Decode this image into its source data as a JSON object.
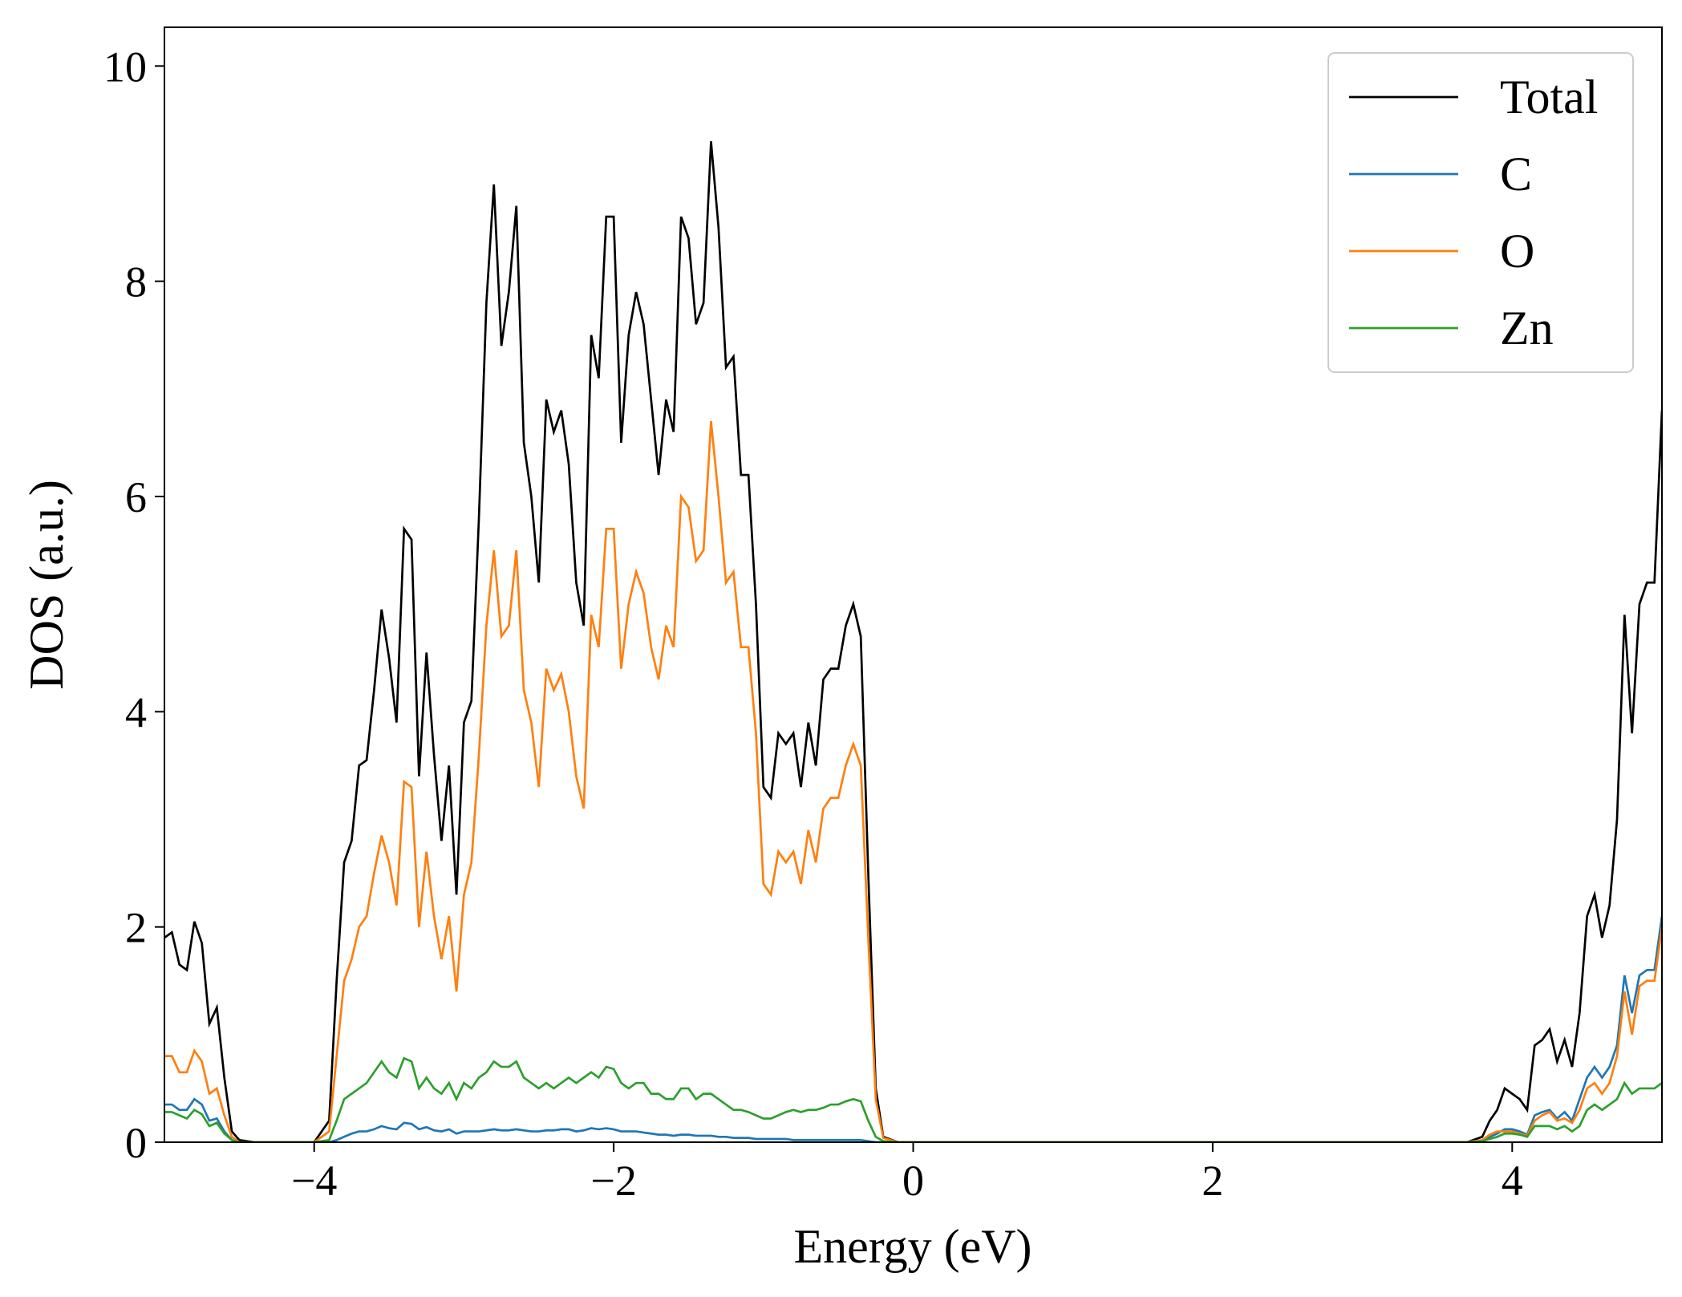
{
  "chart_data": {
    "type": "line",
    "xlabel": "Energy (eV)",
    "ylabel": "DOS (a.u.)",
    "xlim": [
      -5,
      5
    ],
    "ylim": [
      0,
      10.36
    ],
    "xticks": [
      {
        "value": -4,
        "label": "−4"
      },
      {
        "value": -2,
        "label": "−2"
      },
      0,
      2,
      4
    ],
    "yticks": [
      0,
      2,
      4,
      6,
      8,
      10
    ],
    "legend": "upper right",
    "grid": false,
    "x": [
      -5.0,
      -4.95,
      -4.9,
      -4.85,
      -4.8,
      -4.75,
      -4.7,
      -4.65,
      -4.6,
      -4.55,
      -4.5,
      -4.4,
      -4.0,
      -3.9,
      -3.85,
      -3.8,
      -3.75,
      -3.7,
      -3.65,
      -3.6,
      -3.55,
      -3.5,
      -3.45,
      -3.4,
      -3.35,
      -3.3,
      -3.25,
      -3.2,
      -3.15,
      -3.1,
      -3.05,
      -3.0,
      -2.95,
      -2.9,
      -2.85,
      -2.8,
      -2.75,
      -2.7,
      -2.65,
      -2.6,
      -2.55,
      -2.5,
      -2.45,
      -2.4,
      -2.35,
      -2.3,
      -2.25,
      -2.2,
      -2.15,
      -2.1,
      -2.05,
      -2.0,
      -1.95,
      -1.9,
      -1.85,
      -1.8,
      -1.75,
      -1.7,
      -1.65,
      -1.6,
      -1.55,
      -1.5,
      -1.45,
      -1.4,
      -1.35,
      -1.3,
      -1.25,
      -1.2,
      -1.15,
      -1.1,
      -1.05,
      -1.0,
      -0.95,
      -0.9,
      -0.85,
      -0.8,
      -0.75,
      -0.7,
      -0.65,
      -0.6,
      -0.55,
      -0.5,
      -0.45,
      -0.4,
      -0.35,
      -0.3,
      -0.25,
      -0.2,
      -0.1,
      0,
      1,
      2,
      3,
      3.7,
      3.8,
      3.85,
      3.9,
      3.95,
      4.0,
      4.05,
      4.1,
      4.15,
      4.2,
      4.25,
      4.3,
      4.35,
      4.4,
      4.45,
      4.5,
      4.55,
      4.6,
      4.65,
      4.7,
      4.75,
      4.8,
      4.85,
      4.9,
      4.95,
      5.0
    ],
    "series": [
      {
        "name": "Total",
        "color": "#000000",
        "values": [
          1.9,
          1.95,
          1.65,
          1.6,
          2.05,
          1.85,
          1.1,
          1.25,
          0.6,
          0.1,
          0.02,
          0,
          0,
          0.2,
          1.5,
          2.6,
          2.8,
          3.5,
          3.55,
          4.2,
          4.95,
          4.5,
          3.9,
          5.7,
          5.6,
          3.4,
          4.55,
          3.6,
          2.8,
          3.5,
          2.3,
          3.9,
          4.1,
          5.8,
          7.8,
          8.9,
          7.4,
          7.9,
          8.7,
          6.5,
          6.0,
          5.2,
          6.9,
          6.6,
          6.8,
          6.3,
          5.2,
          4.8,
          7.5,
          7.1,
          8.6,
          8.6,
          6.5,
          7.5,
          7.9,
          7.6,
          6.9,
          6.2,
          6.9,
          6.6,
          8.6,
          8.4,
          7.6,
          7.8,
          9.3,
          8.5,
          7.2,
          7.3,
          6.2,
          6.2,
          5.0,
          3.3,
          3.2,
          3.8,
          3.7,
          3.8,
          3.3,
          3.9,
          3.5,
          4.3,
          4.4,
          4.4,
          4.8,
          5.0,
          4.7,
          2.5,
          0.5,
          0.05,
          0,
          0,
          0,
          0,
          0,
          0,
          0.05,
          0.2,
          0.3,
          0.5,
          0.45,
          0.4,
          0.3,
          0.9,
          0.95,
          1.05,
          0.75,
          0.95,
          0.7,
          1.2,
          2.1,
          2.3,
          1.9,
          2.2,
          3.0,
          4.9,
          3.8,
          5.0,
          5.2,
          5.2,
          6.8
        ]
      },
      {
        "name": "C",
        "color": "#1f77b4",
        "values": [
          0.35,
          0.35,
          0.3,
          0.3,
          0.4,
          0.35,
          0.2,
          0.22,
          0.1,
          0.02,
          0,
          0,
          0,
          0,
          0.02,
          0.05,
          0.08,
          0.1,
          0.1,
          0.12,
          0.15,
          0.13,
          0.12,
          0.18,
          0.17,
          0.12,
          0.14,
          0.11,
          0.1,
          0.12,
          0.08,
          0.1,
          0.1,
          0.1,
          0.11,
          0.12,
          0.11,
          0.11,
          0.12,
          0.11,
          0.1,
          0.1,
          0.11,
          0.11,
          0.12,
          0.12,
          0.1,
          0.11,
          0.13,
          0.12,
          0.13,
          0.12,
          0.1,
          0.1,
          0.1,
          0.09,
          0.08,
          0.07,
          0.07,
          0.06,
          0.07,
          0.07,
          0.06,
          0.06,
          0.06,
          0.05,
          0.05,
          0.04,
          0.04,
          0.04,
          0.03,
          0.03,
          0.03,
          0.03,
          0.03,
          0.02,
          0.02,
          0.02,
          0.02,
          0.02,
          0.02,
          0.02,
          0.02,
          0.02,
          0.02,
          0.01,
          0,
          0,
          0,
          0,
          0,
          0,
          0,
          0,
          0.01,
          0.05,
          0.08,
          0.12,
          0.12,
          0.1,
          0.07,
          0.25,
          0.28,
          0.3,
          0.22,
          0.28,
          0.2,
          0.4,
          0.6,
          0.7,
          0.6,
          0.7,
          0.9,
          1.55,
          1.2,
          1.55,
          1.6,
          1.6,
          2.1
        ]
      },
      {
        "name": "O",
        "color": "#ff7f0e",
        "values": [
          0.8,
          0.8,
          0.65,
          0.65,
          0.85,
          0.75,
          0.45,
          0.5,
          0.25,
          0.05,
          0,
          0,
          0,
          0.1,
          0.8,
          1.5,
          1.7,
          2.0,
          2.1,
          2.5,
          2.85,
          2.6,
          2.2,
          3.35,
          3.3,
          2.0,
          2.7,
          2.1,
          1.7,
          2.1,
          1.4,
          2.3,
          2.6,
          3.6,
          4.8,
          5.5,
          4.7,
          4.8,
          5.5,
          4.2,
          3.9,
          3.3,
          4.4,
          4.2,
          4.35,
          4.0,
          3.4,
          3.1,
          4.9,
          4.6,
          5.7,
          5.7,
          4.4,
          5.0,
          5.3,
          5.1,
          4.6,
          4.3,
          4.8,
          4.6,
          6.0,
          5.9,
          5.4,
          5.5,
          6.7,
          6.0,
          5.2,
          5.3,
          4.6,
          4.6,
          3.8,
          2.4,
          2.3,
          2.7,
          2.6,
          2.7,
          2.4,
          2.9,
          2.6,
          3.1,
          3.2,
          3.2,
          3.5,
          3.7,
          3.5,
          1.9,
          0.4,
          0.04,
          0,
          0,
          0,
          0,
          0,
          0,
          0.02,
          0.07,
          0.1,
          0.1,
          0.1,
          0.08,
          0.06,
          0.2,
          0.25,
          0.28,
          0.2,
          0.22,
          0.18,
          0.3,
          0.5,
          0.55,
          0.45,
          0.55,
          0.8,
          1.4,
          1.0,
          1.45,
          1.5,
          1.5,
          2.0
        ]
      },
      {
        "name": "Zn",
        "color": "#2ca02c",
        "values": [
          0.28,
          0.28,
          0.25,
          0.22,
          0.3,
          0.26,
          0.15,
          0.18,
          0.08,
          0.02,
          0,
          0,
          0,
          0.02,
          0.2,
          0.4,
          0.45,
          0.5,
          0.55,
          0.65,
          0.75,
          0.65,
          0.6,
          0.78,
          0.75,
          0.5,
          0.6,
          0.5,
          0.45,
          0.55,
          0.4,
          0.55,
          0.5,
          0.6,
          0.65,
          0.75,
          0.7,
          0.7,
          0.75,
          0.6,
          0.55,
          0.5,
          0.55,
          0.5,
          0.55,
          0.6,
          0.55,
          0.6,
          0.65,
          0.6,
          0.7,
          0.68,
          0.55,
          0.5,
          0.55,
          0.55,
          0.45,
          0.45,
          0.4,
          0.4,
          0.5,
          0.5,
          0.4,
          0.45,
          0.45,
          0.4,
          0.35,
          0.3,
          0.3,
          0.28,
          0.25,
          0.22,
          0.22,
          0.25,
          0.28,
          0.3,
          0.28,
          0.3,
          0.3,
          0.32,
          0.35,
          0.35,
          0.38,
          0.4,
          0.38,
          0.2,
          0.05,
          0.01,
          0,
          0,
          0,
          0,
          0,
          0,
          0.01,
          0.03,
          0.05,
          0.08,
          0.08,
          0.07,
          0.05,
          0.15,
          0.15,
          0.15,
          0.12,
          0.15,
          0.1,
          0.15,
          0.3,
          0.35,
          0.3,
          0.35,
          0.4,
          0.55,
          0.45,
          0.5,
          0.5,
          0.5,
          0.55
        ]
      }
    ]
  }
}
